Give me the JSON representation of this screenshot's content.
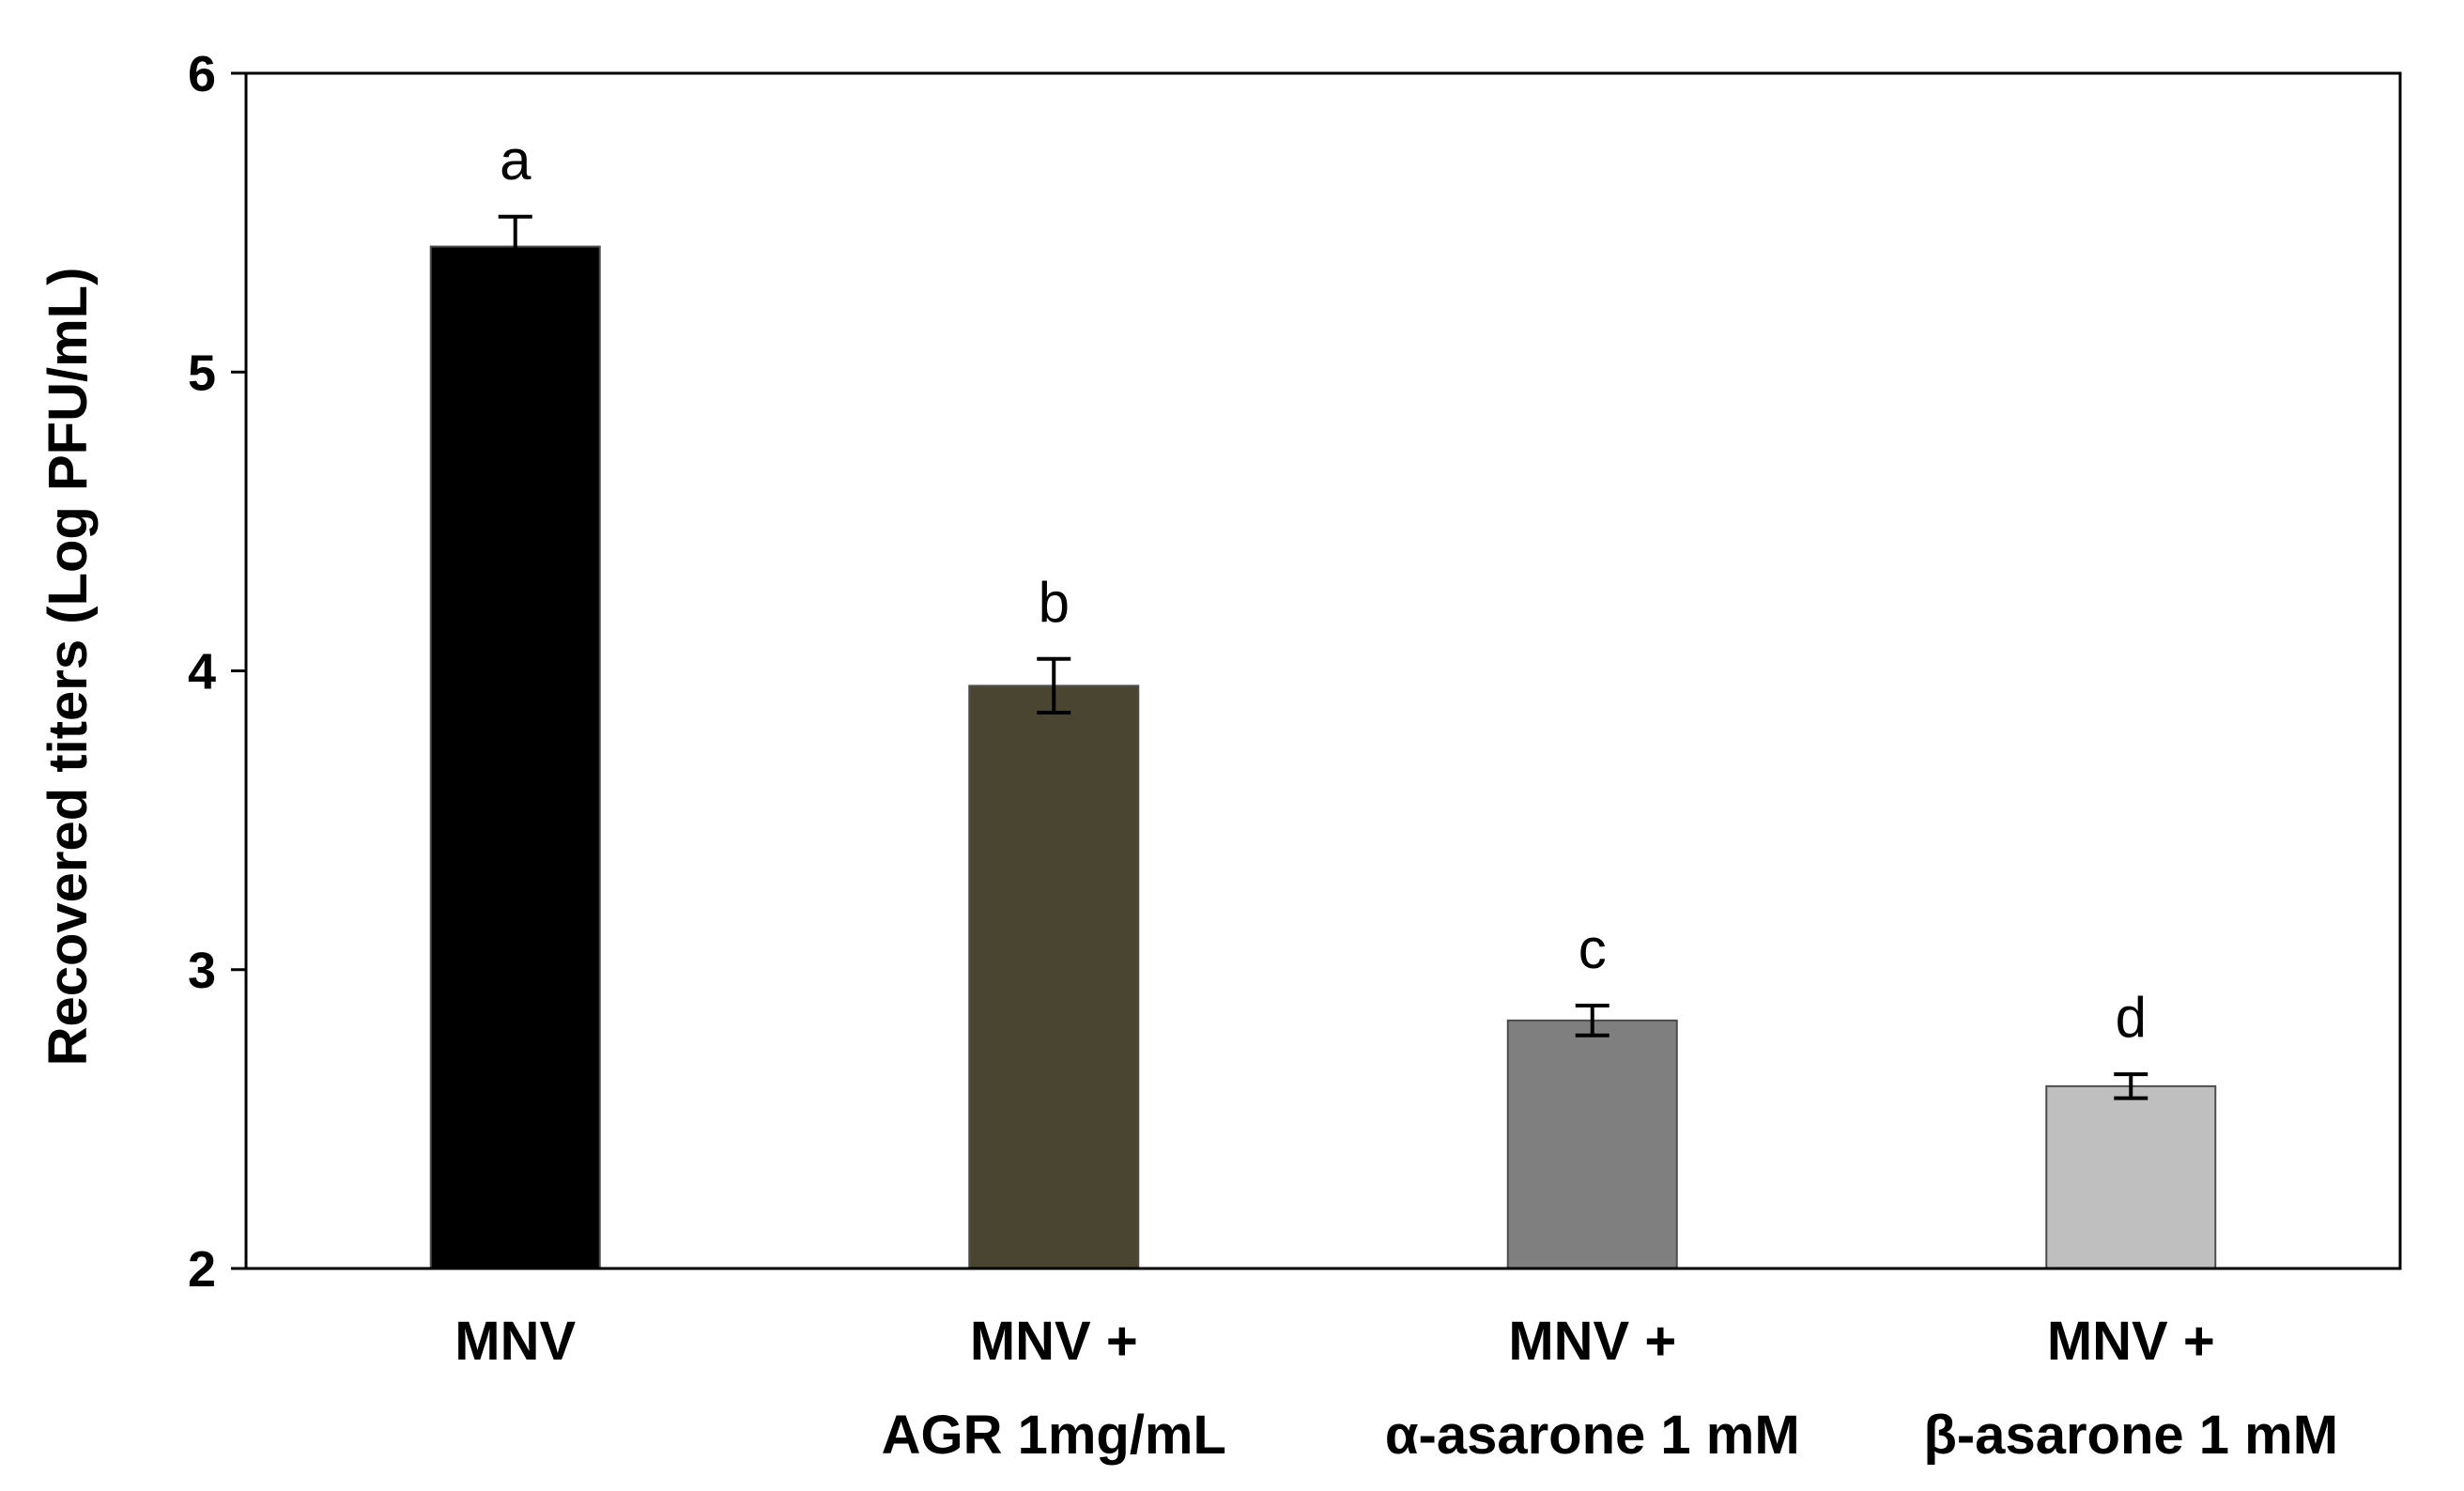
{
  "chart_data": {
    "type": "bar",
    "title": "",
    "xlabel": "",
    "ylabel": "Recovered titers (Log PFU/mL)",
    "ylim": [
      2,
      6
    ],
    "yticks": [
      2,
      3,
      4,
      5,
      6
    ],
    "grid": false,
    "categories": [
      [
        "MNV"
      ],
      [
        "MNV +",
        "AGR 1mg/mL"
      ],
      [
        "MNV +",
        "α-asarone 1 mM"
      ],
      [
        "MNV +",
        "β-asarone 1 mM"
      ]
    ],
    "values": [
      5.42,
      3.95,
      2.83,
      2.61
    ],
    "errors": [
      0.1,
      0.09,
      0.05,
      0.04
    ],
    "significance_labels": [
      "a",
      "b",
      "c",
      "d"
    ],
    "colors": [
      "#000000",
      "#4a4530",
      "#7f7f7f",
      "#bfbfbf"
    ]
  }
}
